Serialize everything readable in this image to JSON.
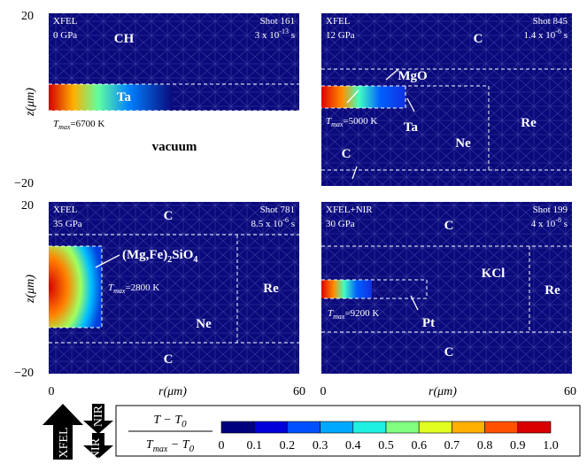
{
  "figure": {
    "y_axis": {
      "label": "z(μm)",
      "top": "20",
      "bottom": "−20"
    },
    "x_axis": {
      "label": "r(μm)",
      "left": "0",
      "right": "60"
    },
    "panels": [
      {
        "source": "XFEL",
        "pressure": "0 GPa",
        "shot": "Shot 161",
        "time": {
          "mantissa": "3 x 10",
          "exponent": "-13",
          "unit": " s"
        },
        "tmax": {
          "symbol": "T",
          "subscript": "max",
          "value": "=6700 K"
        },
        "regions": [
          "CH",
          "Ta",
          "vacuum"
        ]
      },
      {
        "source": "XFEL",
        "pressure": "12 GPa",
        "shot": "Shot 845",
        "time": {
          "mantissa": "1.4 x 10",
          "exponent": "-6",
          "unit": " s"
        },
        "tmax": {
          "symbol": "T",
          "subscript": "max",
          "value": "=5000 K"
        },
        "regions": [
          "C",
          "MgO",
          "Ta",
          "Ne",
          "Re",
          "C"
        ]
      },
      {
        "source": "XFEL",
        "pressure": "35 GPa",
        "shot": "Shot 781",
        "time": {
          "mantissa": "8.5 x 10",
          "exponent": "-6",
          "unit": " s"
        },
        "tmax": {
          "symbol": "T",
          "subscript": "max",
          "value": "=2800 K"
        },
        "regions": [
          "C",
          "(Mg,Fe)",
          "2",
          "SiO",
          "4",
          "Ne",
          "Re",
          "C"
        ]
      },
      {
        "source": "XFEL+NIR",
        "pressure": "30 GPa",
        "shot": "Shot 199",
        "time": {
          "mantissa": "4 x 10",
          "exponent": "-8",
          "unit": " s"
        },
        "tmax": {
          "symbol": "T",
          "subscript": "max",
          "value": "=9200 K"
        },
        "regions": [
          "C",
          "KCl",
          "Re",
          "Pt",
          "C"
        ]
      }
    ],
    "beams": {
      "xfel": "XFEL",
      "nir_top": "NIR",
      "nir_bottom": "NIR"
    },
    "colorbar": {
      "numerator": {
        "main": "T − T",
        "sub": "0"
      },
      "denominator": {
        "t": "T",
        "tsub": "max",
        "mid": " − T",
        "sub": "0"
      },
      "ticks": [
        "0",
        "0.1",
        "0.2",
        "0.3",
        "0.4",
        "0.5",
        "0.6",
        "0.7",
        "0.8",
        "0.9",
        "1.0"
      ]
    }
  }
}
